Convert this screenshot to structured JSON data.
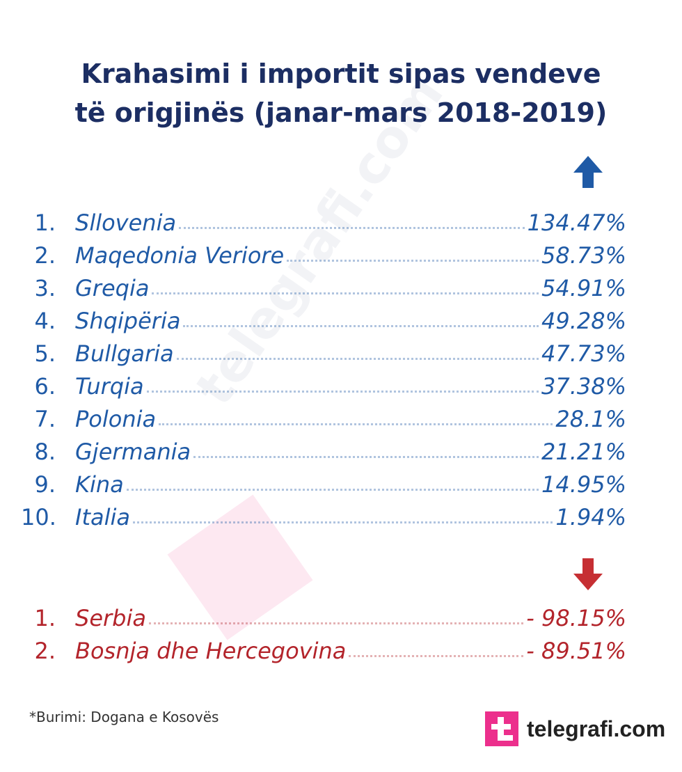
{
  "header": {
    "title": [
      "Krahasimi i importit sipas vendeve",
      "të origjinës (janar-mars 2018-2019)"
    ]
  },
  "increase": [
    {
      "rank": "1.",
      "country": "Sllovenia",
      "value": "134.47%"
    },
    {
      "rank": "2.",
      "country": "Maqedonia Veriore",
      "value": "58.73%"
    },
    {
      "rank": "3.",
      "country": "Greqia",
      "value": "54.91%"
    },
    {
      "rank": "4.",
      "country": "Shqipëria",
      "value": "49.28%"
    },
    {
      "rank": "5.",
      "country": "Bullgaria",
      "value": "47.73%"
    },
    {
      "rank": "6.",
      "country": "Turqia",
      "value": "37.38%"
    },
    {
      "rank": "7.",
      "country": "Polonia",
      "value": "28.1%"
    },
    {
      "rank": "8.",
      "country": "Gjermania",
      "value": "21.21%"
    },
    {
      "rank": "9.",
      "country": "Kina",
      "value": "14.95%"
    },
    {
      "rank": "10.",
      "country": "Italia",
      "value": "1.94%"
    }
  ],
  "decrease": [
    {
      "rank": "1.",
      "country": "Serbia",
      "value": "- 98.15%"
    },
    {
      "rank": "2.",
      "country": "Bosnja dhe Hercegovina",
      "value": "- 89.51%"
    }
  ],
  "source": "*Burimi: Dogana e Kosovës",
  "brand": "telegrafi.com",
  "watermark": "telegrafi.com"
}
